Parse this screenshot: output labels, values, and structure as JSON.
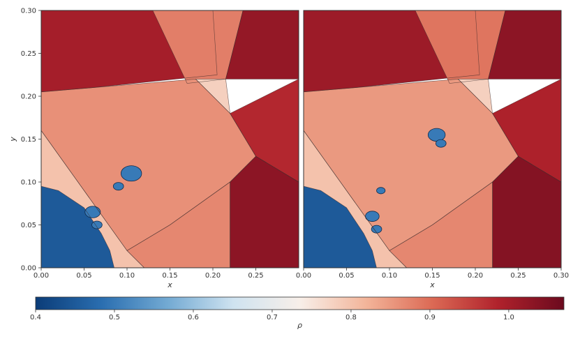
{
  "chart_data": [
    {
      "type": "heatmap",
      "panel": "left",
      "xlabel": "x",
      "ylabel": "y",
      "xlim": [
        0.0,
        0.3
      ],
      "ylim": [
        0.0,
        0.3
      ],
      "xticks": [
        "0.00",
        "0.05",
        "0.10",
        "0.15",
        "0.20",
        "0.25"
      ],
      "yticks": [
        "0.00",
        "0.05",
        "0.10",
        "0.15",
        "0.20",
        "0.25",
        "0.30"
      ],
      "regions": [
        {
          "name": "top-left dense wedge",
          "rho": 1.0
        },
        {
          "name": "top-middle wedge",
          "rho": 0.88
        },
        {
          "name": "top-right dense corner",
          "rho": 1.02
        },
        {
          "name": "upper-center light triangle",
          "rho": 0.78
        },
        {
          "name": "central band",
          "rho": 0.86
        },
        {
          "name": "right dense wedge",
          "rho": 0.98
        },
        {
          "name": "lower-right dense corner",
          "rho": 1.03
        },
        {
          "name": "lower-middle wedge",
          "rho": 0.87
        },
        {
          "name": "light diagonal band",
          "rho": 0.8
        },
        {
          "name": "bottom-left bubble",
          "rho": 0.45
        }
      ]
    },
    {
      "type": "heatmap",
      "panel": "right",
      "xlabel": "x",
      "xlim": [
        0.0,
        0.3
      ],
      "ylim": [
        0.0,
        0.3
      ],
      "xticks": [
        "0.00",
        "0.05",
        "0.10",
        "0.15",
        "0.20",
        "0.25",
        "0.30"
      ],
      "regions": [
        {
          "name": "top-left dense wedge",
          "rho": 1.01
        },
        {
          "name": "top-middle wedge",
          "rho": 0.89
        },
        {
          "name": "top-right dense corner",
          "rho": 1.03
        },
        {
          "name": "upper-center light triangle",
          "rho": 0.78
        },
        {
          "name": "central band",
          "rho": 0.85
        },
        {
          "name": "right dense wedge",
          "rho": 0.99
        },
        {
          "name": "lower-right dense corner",
          "rho": 1.04
        },
        {
          "name": "lower-middle wedge",
          "rho": 0.87
        },
        {
          "name": "light diagonal band",
          "rho": 0.8
        },
        {
          "name": "bottom-left bubble",
          "rho": 0.45
        }
      ]
    }
  ],
  "colorbar": {
    "label": "ρ",
    "vmin": 0.4,
    "vmax": 1.07,
    "ticks": [
      "0.4",
      "0.5",
      "0.6",
      "0.7",
      "0.8",
      "0.9",
      "1.0"
    ],
    "colors": [
      "#0b3c78",
      "#2a6eb0",
      "#73aad3",
      "#cfe3f0",
      "#f8efe9",
      "#f3b59a",
      "#dc6a55",
      "#b0222c",
      "#6b0a1e"
    ]
  }
}
